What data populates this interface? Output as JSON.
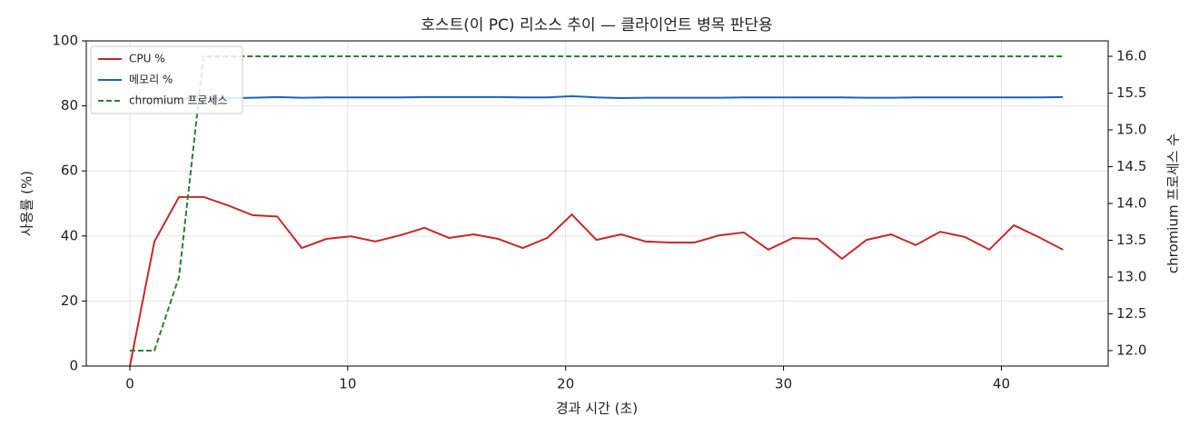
{
  "chart_data": {
    "type": "line",
    "title": "호스트(이 PC) 리소스 추이 — 클라이언트 병목 판단용",
    "xlabel": "경과 시간 (초)",
    "ylabel": "사용률 (%)",
    "y2label": "chromium 프로세스 수",
    "x": [
      0,
      1.127,
      2.254,
      3.381,
      4.508,
      5.635,
      6.762,
      7.889,
      9.016,
      10.143,
      11.27,
      12.397,
      13.524,
      14.651,
      15.778,
      16.905,
      18.032,
      19.159,
      20.286,
      21.413,
      22.54,
      23.667,
      24.794,
      25.921,
      27.048,
      28.175,
      29.302,
      30.429,
      31.556,
      32.683,
      33.81,
      34.937,
      36.064,
      37.191,
      38.318,
      39.445,
      40.572,
      41.699,
      42.826
    ],
    "series": [
      {
        "name": "CPU %",
        "color": "#c62828",
        "linestyle": "solid",
        "values": [
          0,
          38.3,
          52,
          52,
          49.4,
          46.4,
          46,
          36.3,
          39.1,
          39.9,
          38.3,
          40.2,
          42.5,
          39.4,
          40.5,
          39.1,
          36.3,
          39.4,
          46.6,
          38.8,
          40.5,
          38.3,
          38,
          38,
          40.2,
          41.1,
          35.8,
          39.4,
          39.1,
          33,
          38.8,
          40.5,
          37.2,
          41.3,
          39.7,
          35.8,
          43.3,
          39.7,
          35.8
        ]
      },
      {
        "name": "메모리 %",
        "color": "#1565c0",
        "linestyle": "solid",
        "values": [
          82.3,
          82.3,
          82.4,
          82.4,
          82.4,
          82.5,
          82.7,
          82.5,
          82.6,
          82.6,
          82.6,
          82.6,
          82.7,
          82.7,
          82.7,
          82.7,
          82.6,
          82.6,
          83,
          82.6,
          82.4,
          82.5,
          82.5,
          82.5,
          82.5,
          82.6,
          82.6,
          82.6,
          82.6,
          82.6,
          82.5,
          82.5,
          82.6,
          82.6,
          82.6,
          82.6,
          82.6,
          82.6,
          82.7
        ]
      },
      {
        "name": "chromium 프로세스",
        "color": "#2e7d32",
        "linestyle": "dashed",
        "axis": "y2",
        "values": [
          12,
          12,
          13,
          16,
          16,
          16,
          16,
          16,
          16,
          16,
          16,
          16,
          16,
          16,
          16,
          16,
          16,
          16,
          16,
          16,
          16,
          16,
          16,
          16,
          16,
          16,
          16,
          16,
          16,
          16,
          16,
          16,
          16,
          16,
          16,
          16,
          16,
          16,
          16
        ]
      }
    ],
    "xlim": [
      -2,
      44.9
    ],
    "xticks": [
      0,
      10,
      20,
      30,
      40
    ],
    "ylim": [
      0,
      100
    ],
    "yticks": [
      0,
      20,
      40,
      60,
      80,
      100
    ],
    "y2lim": [
      11.79,
      16.21
    ],
    "y2ticks": [
      {
        "value": 12,
        "label": "12.0"
      },
      12.5,
      {
        "value": 13,
        "label": "13.0"
      },
      13.5,
      {
        "value": 14,
        "label": "14.0"
      },
      14.5,
      {
        "value": 15,
        "label": "15.0"
      },
      15.5,
      {
        "value": 16,
        "label": "16.0"
      }
    ],
    "grid": true,
    "legend": "upper left"
  }
}
